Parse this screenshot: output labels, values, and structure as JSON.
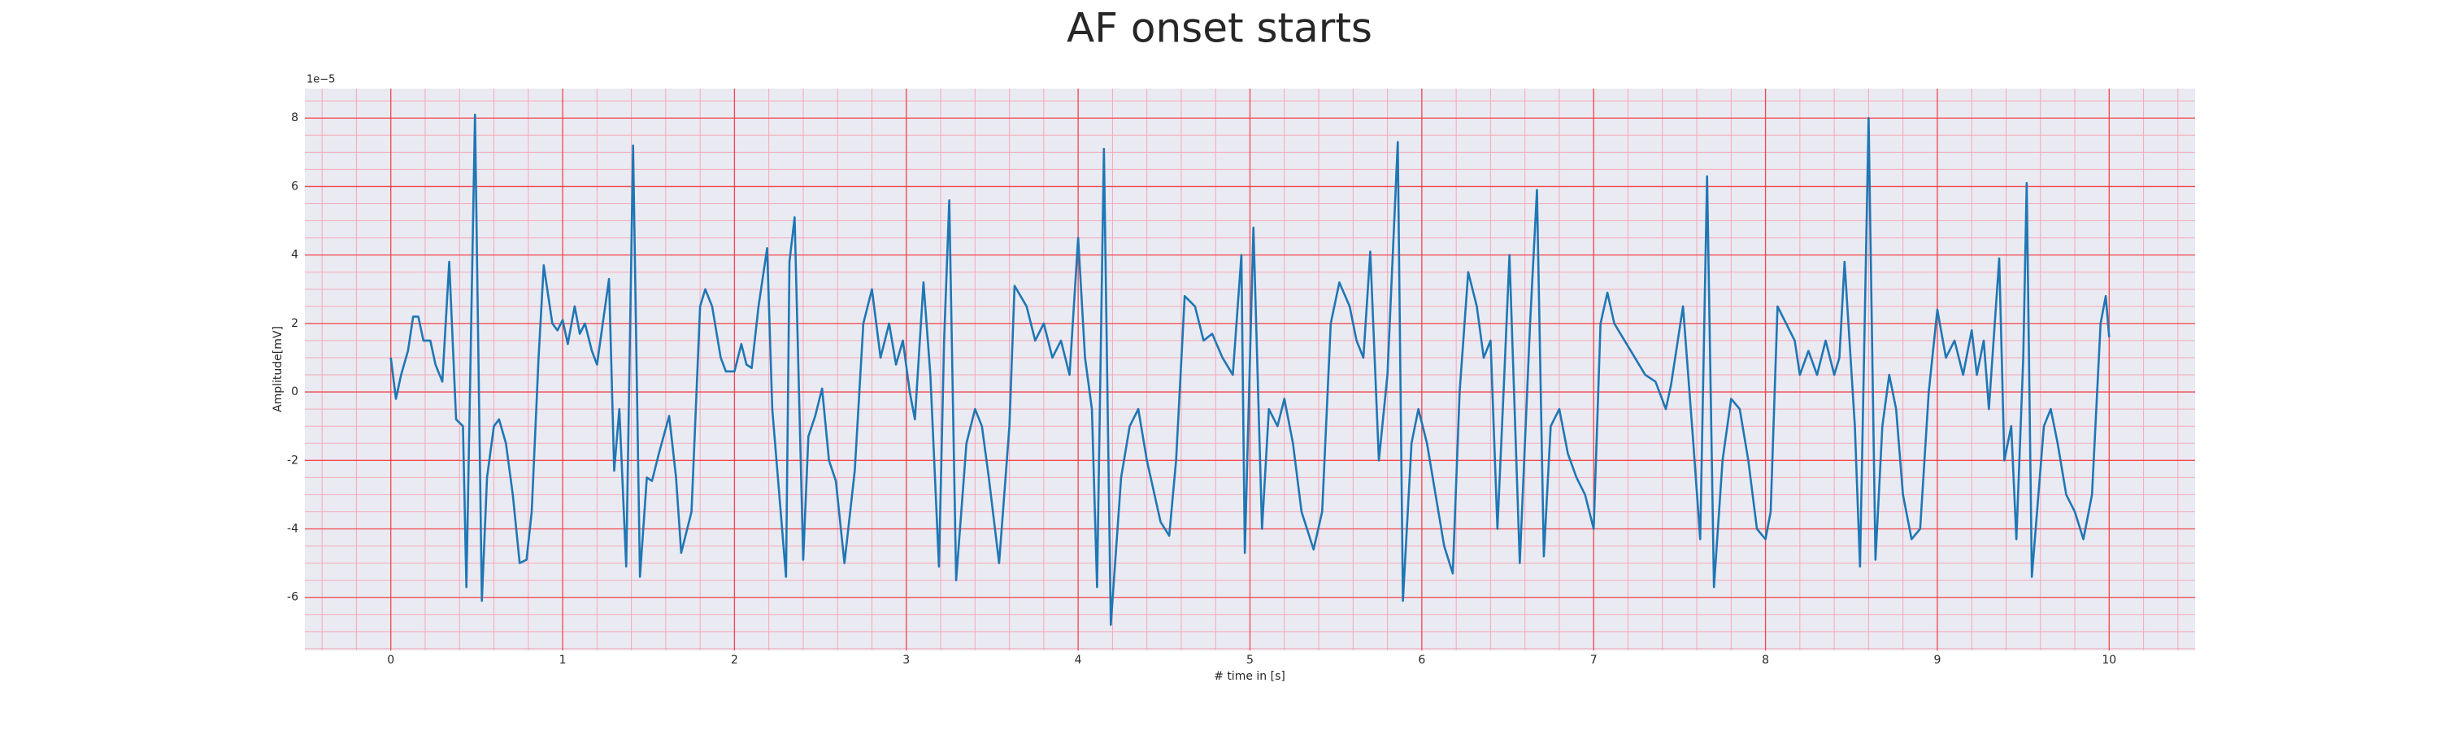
{
  "chart_data": {
    "type": "line",
    "title": "AF onset starts",
    "x_label": "# time in [s]",
    "y_label": "Amplitude[mV]",
    "y_offset_label": "1e−5",
    "color": "#1f77b4",
    "grid": true,
    "minor_grid": true,
    "xlim": [
      -0.5,
      10.5
    ],
    "ylim": [
      -7.55,
      8.86
    ],
    "xticks": [
      0,
      1,
      2,
      3,
      4,
      5,
      6,
      7,
      8,
      9,
      10
    ],
    "yticks": [
      -6,
      -4,
      -2,
      0,
      2,
      4,
      6,
      8
    ],
    "x": [
      0,
      0.03,
      0.06,
      0.1,
      0.13,
      0.16,
      0.19,
      0.23,
      0.26,
      0.3,
      0.34,
      0.38,
      0.42,
      0.44,
      0.49,
      0.53,
      0.56,
      0.6,
      0.63,
      0.67,
      0.71,
      0.75,
      0.79,
      0.82,
      0.86,
      0.89,
      0.94,
      0.97,
      1.0,
      1.03,
      1.07,
      1.1,
      1.13,
      1.17,
      1.2,
      1.27,
      1.3,
      1.33,
      1.37,
      1.41,
      1.45,
      1.49,
      1.52,
      1.56,
      1.62,
      1.66,
      1.69,
      1.75,
      1.8,
      1.83,
      1.87,
      1.92,
      1.95,
      2.0,
      2.04,
      2.07,
      2.1,
      2.14,
      2.19,
      2.22,
      2.3,
      2.32,
      2.35,
      2.4,
      2.43,
      2.47,
      2.51,
      2.55,
      2.59,
      2.64,
      2.7,
      2.75,
      2.8,
      2.85,
      2.9,
      2.94,
      2.98,
      3.02,
      3.05,
      3.1,
      3.14,
      3.19,
      3.22,
      3.25,
      3.29,
      3.35,
      3.4,
      3.44,
      3.48,
      3.54,
      3.6,
      3.63,
      3.7,
      3.75,
      3.8,
      3.85,
      3.9,
      3.95,
      4.0,
      4.04,
      4.08,
      4.11,
      4.15,
      4.19,
      4.25,
      4.3,
      4.35,
      4.4,
      4.48,
      4.53,
      4.57,
      4.62,
      4.68,
      4.73,
      4.78,
      4.84,
      4.9,
      4.95,
      4.97,
      5.02,
      5.07,
      5.11,
      5.16,
      5.2,
      5.25,
      5.3,
      5.37,
      5.42,
      5.47,
      5.52,
      5.58,
      5.62,
      5.66,
      5.7,
      5.75,
      5.8,
      5.86,
      5.89,
      5.94,
      5.98,
      6.03,
      6.08,
      6.13,
      6.18,
      6.22,
      6.27,
      6.32,
      6.36,
      6.4,
      6.44,
      6.48,
      6.51,
      6.57,
      6.63,
      6.67,
      6.71,
      6.75,
      6.8,
      6.85,
      6.9,
      6.95,
      7.0,
      7.04,
      7.08,
      7.12,
      7.18,
      7.24,
      7.3,
      7.36,
      7.42,
      7.45,
      7.52,
      7.58,
      7.62,
      7.66,
      7.7,
      7.75,
      7.8,
      7.85,
      7.9,
      7.95,
      8.0,
      8.03,
      8.07,
      8.12,
      8.17,
      8.2,
      8.25,
      8.3,
      8.35,
      8.4,
      8.43,
      8.46,
      8.52,
      8.55,
      8.6,
      8.64,
      8.68,
      8.72,
      8.76,
      8.8,
      8.85,
      8.9,
      8.95,
      9.0,
      9.05,
      9.1,
      9.15,
      9.2,
      9.23,
      9.27,
      9.3,
      9.36,
      9.39,
      9.43,
      9.46,
      9.5,
      9.52,
      9.55,
      9.62,
      9.66,
      9.7,
      9.75,
      9.8,
      9.85,
      9.9,
      9.95,
      9.98,
      10.0
    ],
    "values": [
      1.0,
      -0.2,
      0.5,
      1.2,
      2.2,
      2.2,
      1.5,
      1.5,
      0.8,
      0.3,
      3.8,
      -0.8,
      -1.0,
      -5.7,
      8.1,
      -6.1,
      -2.5,
      -1.0,
      -0.8,
      -1.5,
      -3.0,
      -5.0,
      -4.9,
      -3.5,
      1.0,
      3.7,
      2.0,
      1.8,
      2.1,
      1.4,
      2.5,
      1.7,
      2.0,
      1.2,
      0.8,
      3.3,
      -2.3,
      -0.5,
      -5.1,
      7.2,
      -5.4,
      -2.5,
      -2.6,
      -1.8,
      -0.7,
      -2.5,
      -4.7,
      -3.5,
      2.5,
      3.0,
      2.5,
      1.0,
      0.6,
      0.6,
      1.4,
      0.8,
      0.7,
      2.5,
      4.2,
      -0.5,
      -5.4,
      3.8,
      5.1,
      -4.9,
      -1.3,
      -0.7,
      0.1,
      -2.0,
      -2.6,
      -5.0,
      -2.3,
      2.0,
      3.0,
      1.0,
      2.0,
      0.8,
      1.5,
      0.0,
      -0.8,
      3.2,
      0.5,
      -5.1,
      1.5,
      5.6,
      -5.5,
      -1.5,
      -0.5,
      -1.0,
      -2.5,
      -5.0,
      -1.0,
      3.1,
      2.5,
      1.5,
      2.0,
      1.0,
      1.5,
      0.5,
      4.5,
      1.0,
      -0.5,
      -5.7,
      7.1,
      -6.8,
      -2.5,
      -1.0,
      -0.5,
      -2.0,
      -3.8,
      -4.2,
      -2.0,
      2.8,
      2.5,
      1.5,
      1.7,
      1.0,
      0.5,
      4.0,
      -4.7,
      4.8,
      -4.0,
      -0.5,
      -1.0,
      -0.2,
      -1.5,
      -3.5,
      -4.6,
      -3.5,
      2.0,
      3.2,
      2.5,
      1.5,
      1.0,
      4.1,
      -2.0,
      0.5,
      7.3,
      -6.1,
      -1.5,
      -0.5,
      -1.5,
      -3.0,
      -4.5,
      -5.3,
      0.0,
      3.5,
      2.5,
      1.0,
      1.5,
      -4.0,
      0.5,
      4.0,
      -5.0,
      2.0,
      5.9,
      -4.8,
      -1.0,
      -0.5,
      -1.8,
      -2.5,
      -3.0,
      -4.0,
      2.0,
      2.9,
      2.0,
      1.5,
      1.0,
      0.5,
      0.3,
      -0.5,
      0.2,
      2.5,
      -1.5,
      -4.3,
      6.3,
      -5.7,
      -2.0,
      -0.2,
      -0.5,
      -2.0,
      -4.0,
      -4.3,
      -3.5,
      2.5,
      2.0,
      1.5,
      0.5,
      1.2,
      0.5,
      1.5,
      0.5,
      1.0,
      3.8,
      -1.0,
      -5.1,
      8.0,
      -4.9,
      -1.0,
      0.5,
      -0.5,
      -3.0,
      -4.3,
      -4.0,
      0.0,
      2.4,
      1.0,
      1.5,
      0.5,
      1.8,
      0.5,
      1.5,
      -0.5,
      3.9,
      -2.0,
      -1.0,
      -4.3,
      1.0,
      6.1,
      -5.4,
      -1.0,
      -0.5,
      -1.5,
      -3.0,
      -3.5,
      -4.3,
      -3.0,
      2.0,
      2.8,
      1.6
    ]
  }
}
